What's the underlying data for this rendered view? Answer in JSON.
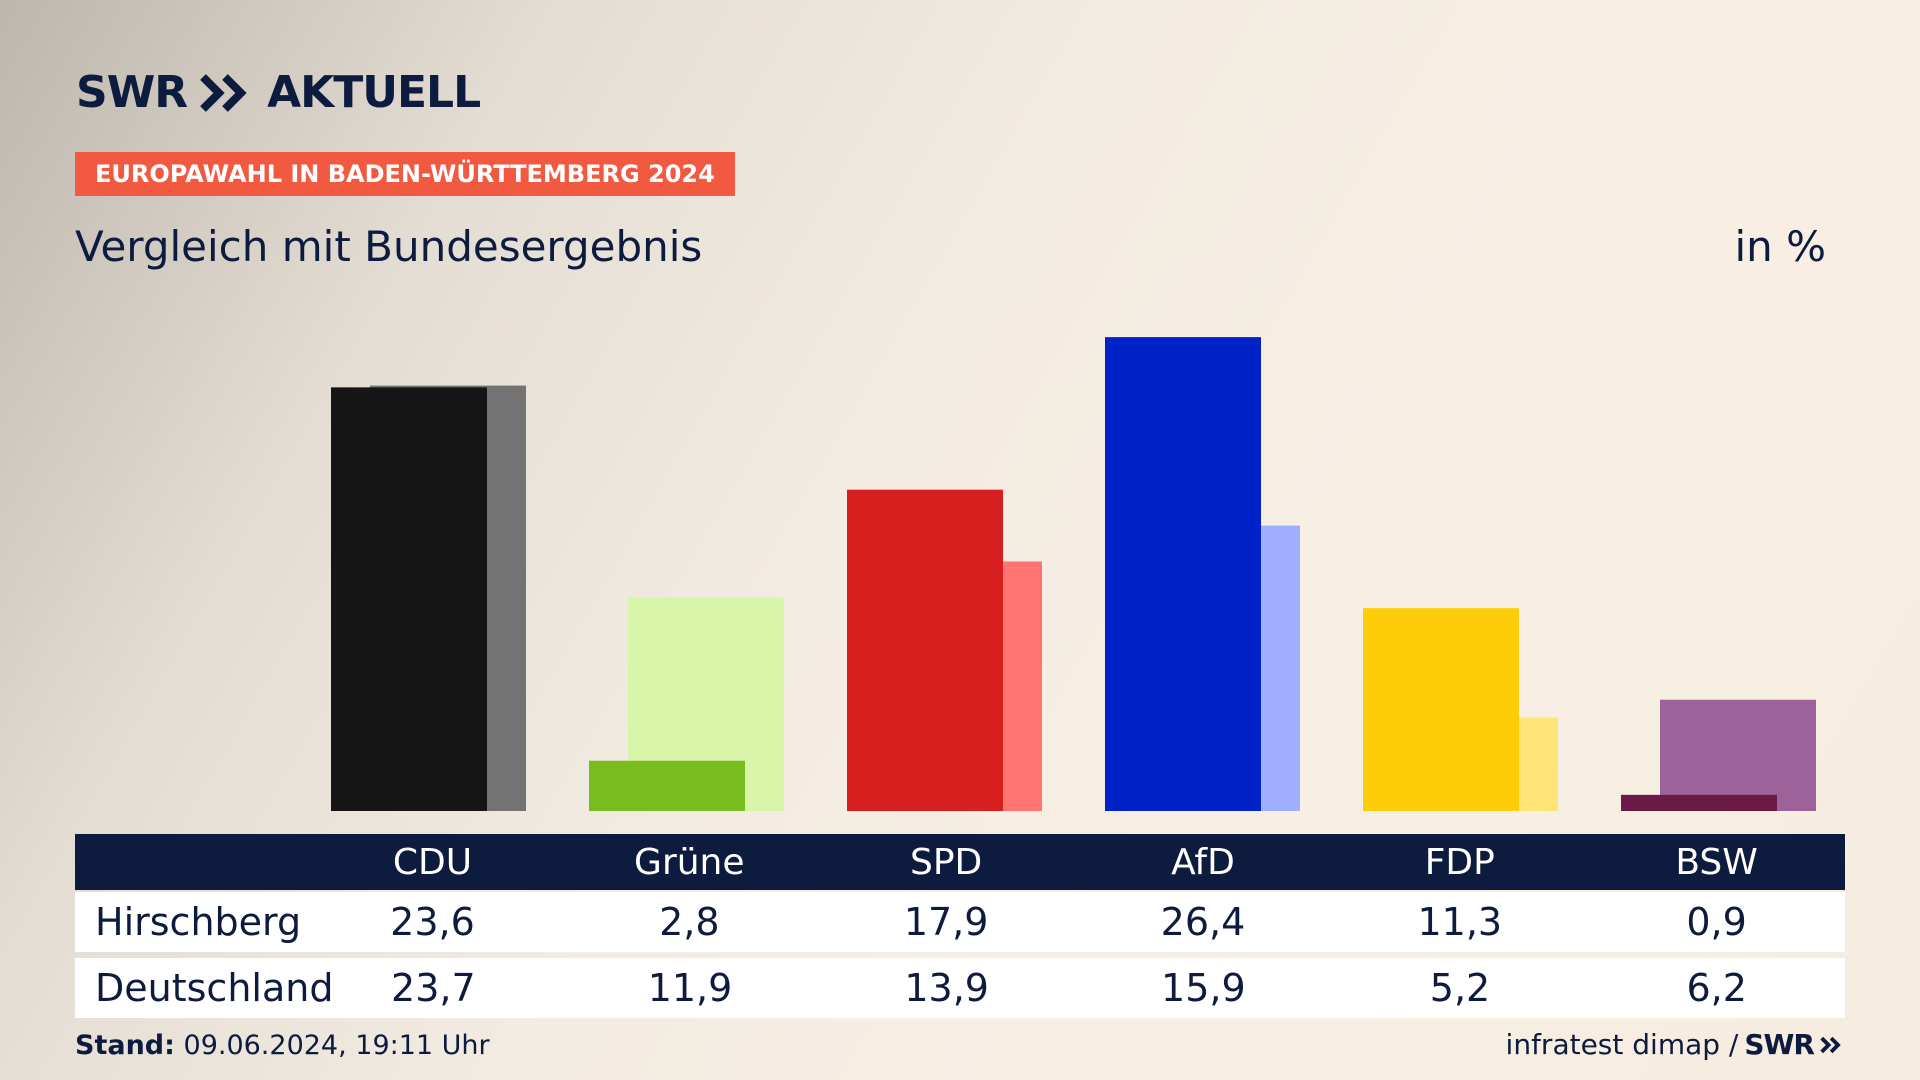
{
  "header": {
    "logo_text": "SWR",
    "logo_product": "AKTUELL",
    "badge": "EUROPAWAHL IN BADEN-WÜRTTEMBERG 2024",
    "subtitle": "Vergleich mit Bundesergebnis",
    "unit": "in %"
  },
  "colors": {
    "navy": "#0d1b3e",
    "badge_bg": "#f15a40"
  },
  "chart_data": {
    "type": "bar",
    "categories": [
      "CDU",
      "Grüne",
      "SPD",
      "AfD",
      "FDP",
      "BSW"
    ],
    "series": [
      {
        "name": "Hirschberg",
        "values": [
          23.6,
          2.8,
          17.9,
          26.4,
          11.3,
          0.9
        ],
        "colors": [
          "#151515",
          "#78bc1e",
          "#d71f1f",
          "#0022c8",
          "#ffcc0a",
          "#6a1a45"
        ]
      },
      {
        "name": "Deutschland",
        "values": [
          23.7,
          11.9,
          13.9,
          15.9,
          5.2,
          6.2
        ],
        "colors": [
          "#737373",
          "#d8f5a9",
          "#ff7370",
          "#a0aeff",
          "#ffe478",
          "#9c6299"
        ]
      }
    ],
    "ylim": [
      0,
      30
    ]
  },
  "table": {
    "columns": [
      "CDU",
      "Grüne",
      "SPD",
      "AfD",
      "FDP",
      "BSW"
    ],
    "rows": [
      {
        "label": "Hirschberg",
        "values": [
          "23,6",
          "2,8",
          "17,9",
          "26,4",
          "11,3",
          "0,9"
        ]
      },
      {
        "label": "Deutschland",
        "values": [
          "23,7",
          "11,9",
          "13,9",
          "15,9",
          "5,2",
          "6,2"
        ]
      }
    ]
  },
  "footer": {
    "stand_label": "Stand:",
    "stand_value": "09.06.2024, 19:11 Uhr",
    "source": "infratest dimap /",
    "source_logo": "SWR"
  }
}
